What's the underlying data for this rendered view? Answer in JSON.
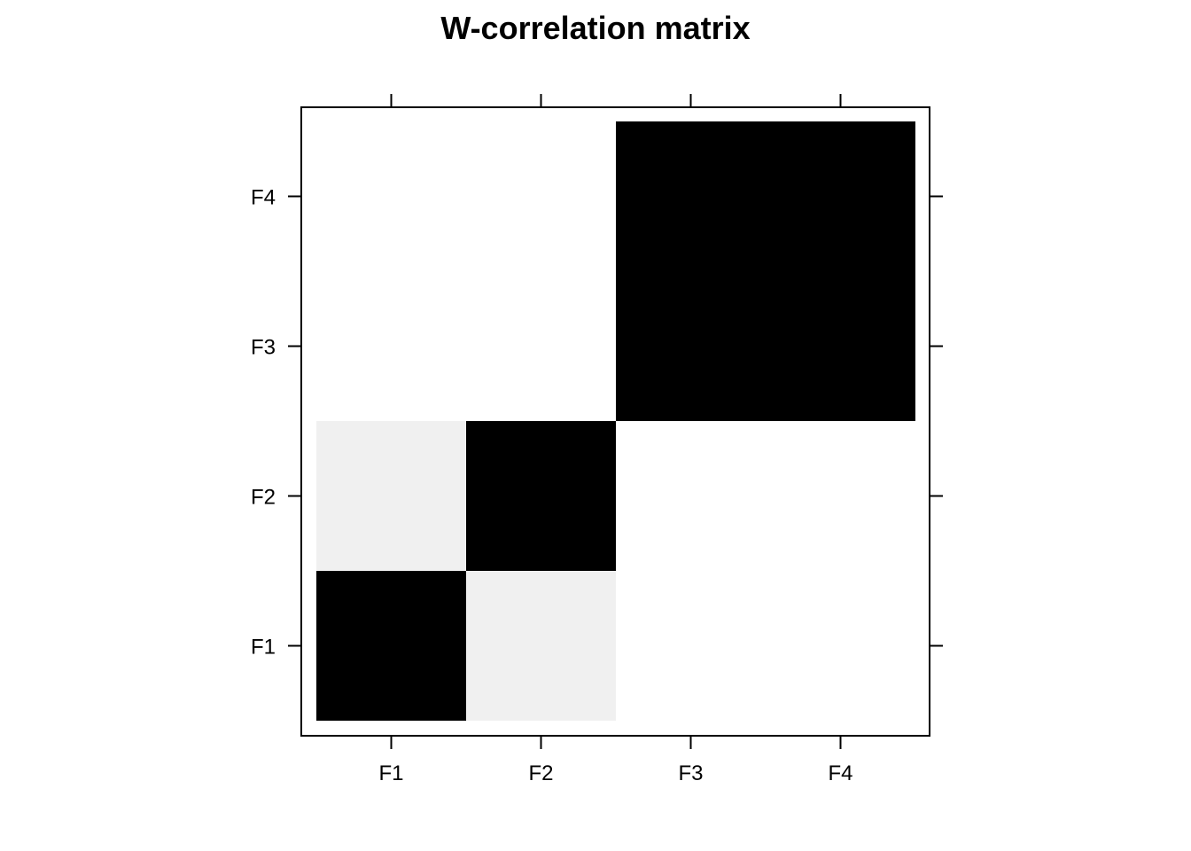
{
  "chart_data": {
    "type": "heatmap",
    "title": "W-correlation matrix",
    "x_categories": [
      "F1",
      "F2",
      "F3",
      "F4"
    ],
    "y_categories": [
      "F1",
      "F2",
      "F3",
      "F4"
    ],
    "values": [
      [
        1.0,
        0.06,
        0.0,
        0.0
      ],
      [
        0.06,
        1.0,
        0.0,
        0.0
      ],
      [
        0.0,
        0.0,
        1.0,
        1.0
      ],
      [
        0.0,
        0.0,
        1.0,
        1.0
      ]
    ],
    "value_range": [
      0,
      1
    ],
    "colors": {
      "low": "#ffffff",
      "high": "#000000",
      "axis": "#000000"
    },
    "legend": "none",
    "grid": false
  }
}
